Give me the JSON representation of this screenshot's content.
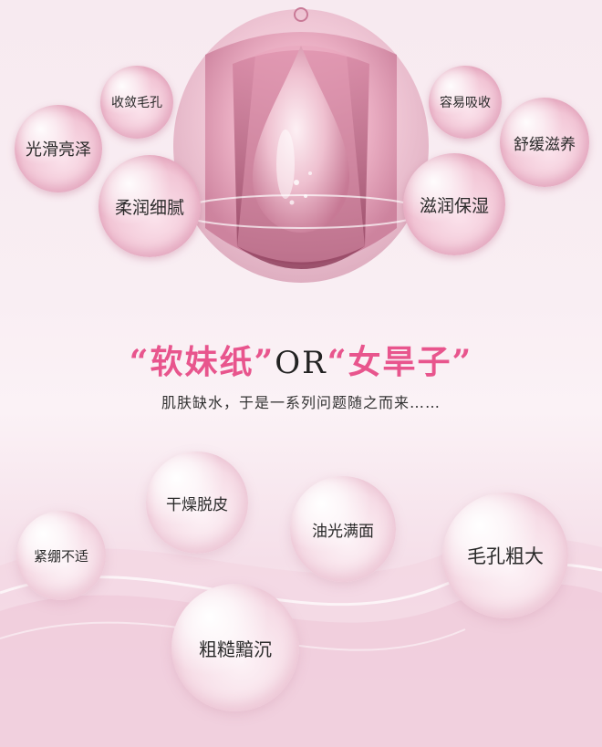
{
  "benefits": {
    "shrink_pores": "收敛毛孔",
    "smooth_shiny": "光滑亮泽",
    "soft_fine": "柔润细腻",
    "easy_absorb": "容易吸收",
    "soothing": "舒缓滋养",
    "moisturize": "滋润保湿"
  },
  "headline": {
    "open_quote1": "“",
    "soft_girl": "软妹纸",
    "close_quote1": "”",
    "or": "OR",
    "open_quote2": "“",
    "dry_girl": "女旱子",
    "close_quote2": "”"
  },
  "subline": "肌肤缺水，于是一系列问题随之而来……",
  "problems": {
    "dry_peel": "干燥脱皮",
    "tight": "紧绷不适",
    "oily": "油光满面",
    "large_pores": "毛孔粗大",
    "rough_dull": "粗糙黯沉"
  },
  "colors": {
    "accent_pink": "#e8558d",
    "background": "#f9eef3"
  }
}
